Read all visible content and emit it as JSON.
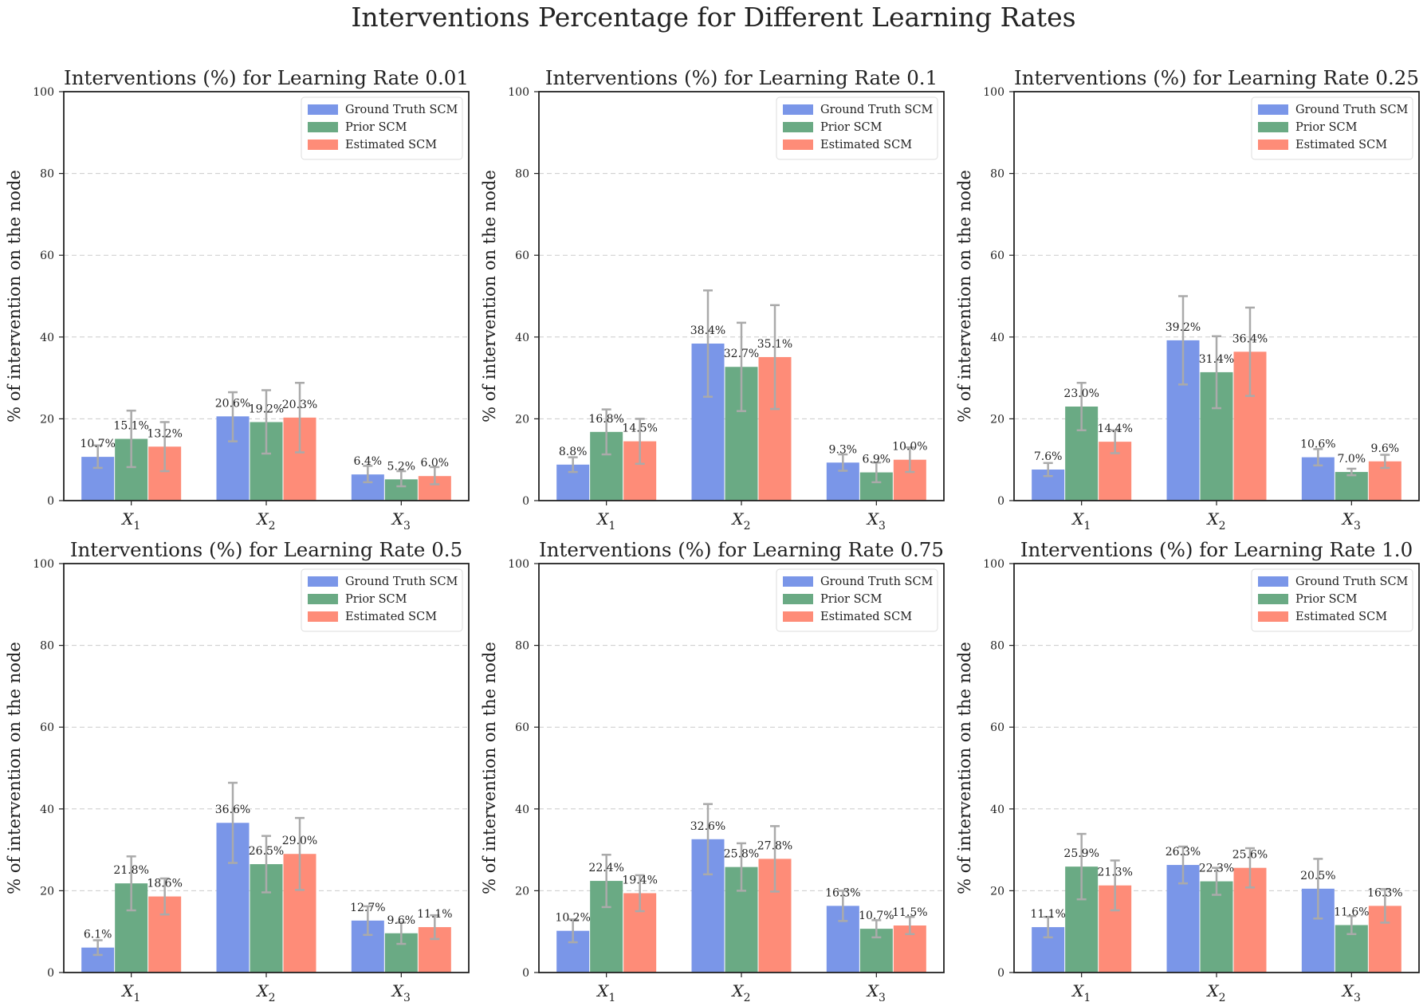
{
  "suptitle": "Interventions Percentage for Different Learning Rates",
  "colors": {
    "ground_truth": "#7a96e8",
    "prior": "#6aaa84",
    "estimated": "#fe8c78",
    "error_bar": "#aaaaaa",
    "grid": "#cccccc"
  },
  "chart_data": [
    {
      "type": "bar",
      "title": "Interventions (%) for Learning Rate 0.01",
      "ylabel": "% of intervention on the node",
      "categories": [
        "X1",
        "X2",
        "X3"
      ],
      "ylim": [
        0,
        100
      ],
      "yticks": [
        0,
        20,
        40,
        60,
        80,
        100
      ],
      "grid": "y dashed",
      "legend": "top-right",
      "series": [
        {
          "name": "Ground Truth SCM",
          "values": [
            10.7,
            20.6,
            6.4
          ],
          "err_low": [
            8.0,
            14.5,
            4.5
          ],
          "err_high": [
            13.5,
            26.5,
            8.5
          ],
          "labels": [
            "10.7%",
            "20.6%",
            "6.4%"
          ]
        },
        {
          "name": "Prior SCM",
          "values": [
            15.1,
            19.2,
            5.2
          ],
          "err_low": [
            8.2,
            11.5,
            3.5
          ],
          "err_high": [
            22.0,
            27.0,
            7.2
          ],
          "labels": [
            "15.1%",
            "19.2%",
            "5.2%"
          ]
        },
        {
          "name": "Estimated SCM",
          "values": [
            13.2,
            20.3,
            6.0
          ],
          "err_low": [
            7.2,
            11.8,
            4.0
          ],
          "err_high": [
            19.2,
            28.8,
            8.2
          ],
          "labels": [
            "13.2%",
            "20.3%",
            "6.0%"
          ]
        }
      ]
    },
    {
      "type": "bar",
      "title": "Interventions (%) for Learning Rate 0.1",
      "ylabel": "% of intervention on the node",
      "categories": [
        "X1",
        "X2",
        "X3"
      ],
      "ylim": [
        0,
        100
      ],
      "yticks": [
        0,
        20,
        40,
        60,
        80,
        100
      ],
      "grid": "y dashed",
      "legend": "top-right",
      "series": [
        {
          "name": "Ground Truth SCM",
          "values": [
            8.8,
            38.4,
            9.3
          ],
          "err_low": [
            7.0,
            25.4,
            7.3
          ],
          "err_high": [
            10.6,
            51.4,
            11.3
          ],
          "labels": [
            "8.8%",
            "38.4%",
            "9.3%"
          ]
        },
        {
          "name": "Prior SCM",
          "values": [
            16.8,
            32.7,
            6.9
          ],
          "err_low": [
            11.3,
            21.9,
            4.5
          ],
          "err_high": [
            22.3,
            43.5,
            9.3
          ],
          "labels": [
            "16.8%",
            "32.7%",
            "6.9%"
          ]
        },
        {
          "name": "Estimated SCM",
          "values": [
            14.5,
            35.1,
            10.0
          ],
          "err_low": [
            9.0,
            22.4,
            7.0
          ],
          "err_high": [
            20.0,
            47.8,
            13.0
          ],
          "labels": [
            "14.5%",
            "35.1%",
            "10.0%"
          ]
        }
      ]
    },
    {
      "type": "bar",
      "title": "Interventions (%) for Learning Rate 0.25",
      "ylabel": "% of intervention on the node",
      "categories": [
        "X1",
        "X2",
        "X3"
      ],
      "ylim": [
        0,
        100
      ],
      "yticks": [
        0,
        20,
        40,
        60,
        80,
        100
      ],
      "grid": "y dashed",
      "legend": "top-right",
      "series": [
        {
          "name": "Ground Truth SCM",
          "values": [
            7.6,
            39.2,
            10.6
          ],
          "err_low": [
            6.0,
            28.4,
            8.6
          ],
          "err_high": [
            9.2,
            50.0,
            12.6
          ],
          "labels": [
            "7.6%",
            "39.2%",
            "10.6%"
          ]
        },
        {
          "name": "Prior SCM",
          "values": [
            23.0,
            31.4,
            7.0
          ],
          "err_low": [
            17.2,
            22.6,
            6.2
          ],
          "err_high": [
            28.8,
            40.2,
            7.8
          ],
          "labels": [
            "23.0%",
            "31.4%",
            "7.0%"
          ]
        },
        {
          "name": "Estimated SCM",
          "values": [
            14.4,
            36.4,
            9.6
          ],
          "err_low": [
            11.6,
            25.6,
            8.0
          ],
          "err_high": [
            17.2,
            47.2,
            11.2
          ],
          "labels": [
            "14.4%",
            "36.4%",
            "9.6%"
          ]
        }
      ]
    },
    {
      "type": "bar",
      "title": "Interventions (%) for Learning Rate 0.5",
      "ylabel": "% of intervention on the node",
      "categories": [
        "X1",
        "X2",
        "X3"
      ],
      "ylim": [
        0,
        100
      ],
      "yticks": [
        0,
        20,
        40,
        60,
        80,
        100
      ],
      "grid": "y dashed",
      "legend": "top-right",
      "series": [
        {
          "name": "Ground Truth SCM",
          "values": [
            6.1,
            36.6,
            12.7
          ],
          "err_low": [
            4.3,
            26.8,
            9.2
          ],
          "err_high": [
            7.9,
            46.4,
            16.2
          ],
          "labels": [
            "6.1%",
            "36.6%",
            "12.7%"
          ]
        },
        {
          "name": "Prior SCM",
          "values": [
            21.8,
            26.5,
            9.6
          ],
          "err_low": [
            15.2,
            19.6,
            7.0
          ],
          "err_high": [
            28.4,
            33.4,
            12.2
          ],
          "labels": [
            "21.8%",
            "26.5%",
            "9.6%"
          ]
        },
        {
          "name": "Estimated SCM",
          "values": [
            18.6,
            29.0,
            11.1
          ],
          "err_low": [
            14.2,
            20.2,
            8.2
          ],
          "err_high": [
            23.0,
            37.8,
            14.0
          ],
          "labels": [
            "18.6%",
            "29.0%",
            "11.1%"
          ]
        }
      ]
    },
    {
      "type": "bar",
      "title": "Interventions (%) for Learning Rate 0.75",
      "ylabel": "% of intervention on the node",
      "categories": [
        "X1",
        "X2",
        "X3"
      ],
      "ylim": [
        0,
        100
      ],
      "yticks": [
        0,
        20,
        40,
        60,
        80,
        100
      ],
      "grid": "y dashed",
      "legend": "top-right",
      "series": [
        {
          "name": "Ground Truth SCM",
          "values": [
            10.2,
            32.6,
            16.3
          ],
          "err_low": [
            7.4,
            24.0,
            12.6
          ],
          "err_high": [
            13.0,
            41.2,
            20.0
          ],
          "labels": [
            "10.2%",
            "32.6%",
            "16.3%"
          ]
        },
        {
          "name": "Prior SCM",
          "values": [
            22.4,
            25.8,
            10.7
          ],
          "err_low": [
            16.0,
            20.0,
            8.6
          ],
          "err_high": [
            28.8,
            31.6,
            12.8
          ],
          "labels": [
            "22.4%",
            "25.8%",
            "10.7%"
          ]
        },
        {
          "name": "Estimated SCM",
          "values": [
            19.4,
            27.8,
            11.5
          ],
          "err_low": [
            15.0,
            19.8,
            9.4
          ],
          "err_high": [
            23.8,
            35.8,
            13.6
          ],
          "labels": [
            "19.4%",
            "27.8%",
            "11.5%"
          ]
        }
      ]
    },
    {
      "type": "bar",
      "title": "Interventions (%) for Learning Rate 1.0",
      "ylabel": "% of intervention on the node",
      "categories": [
        "X1",
        "X2",
        "X3"
      ],
      "ylim": [
        0,
        100
      ],
      "yticks": [
        0,
        20,
        40,
        60,
        80,
        100
      ],
      "grid": "y dashed",
      "legend": "top-right",
      "series": [
        {
          "name": "Ground Truth SCM",
          "values": [
            11.1,
            26.3,
            20.5
          ],
          "err_low": [
            8.6,
            21.8,
            13.2
          ],
          "err_high": [
            13.6,
            30.8,
            27.8
          ],
          "labels": [
            "11.1%",
            "26.3%",
            "20.5%"
          ]
        },
        {
          "name": "Prior SCM",
          "values": [
            25.9,
            22.3,
            11.6
          ],
          "err_low": [
            17.9,
            19.0,
            9.4
          ],
          "err_high": [
            33.9,
            25.6,
            13.8
          ],
          "labels": [
            "25.9%",
            "22.3%",
            "11.6%"
          ]
        },
        {
          "name": "Estimated SCM",
          "values": [
            21.3,
            25.6,
            16.3
          ],
          "err_low": [
            15.2,
            20.8,
            12.2
          ],
          "err_high": [
            27.4,
            30.4,
            20.4
          ],
          "labels": [
            "21.3%",
            "25.6%",
            "16.3%"
          ]
        }
      ]
    }
  ]
}
